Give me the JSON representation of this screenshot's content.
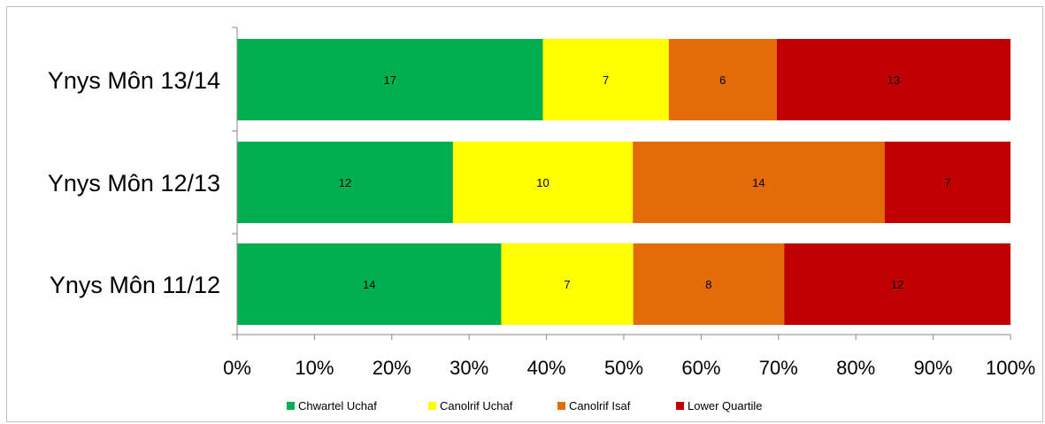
{
  "chart_data": {
    "type": "bar",
    "orientation": "horizontal",
    "stacked": "percent",
    "categories": [
      "Ynys Môn  13/14",
      "Ynys Môn 12/13",
      "Ynys Môn 11/12"
    ],
    "series": [
      {
        "name": "Chwartel Uchaf",
        "color": "#00b050",
        "values": [
          17,
          12,
          14
        ]
      },
      {
        "name": "Canolrif Uchaf",
        "color": "#ffff00",
        "values": [
          7,
          10,
          7
        ]
      },
      {
        "name": "Canolrif Isaf",
        "color": "#e36c09",
        "values": [
          6,
          14,
          8
        ]
      },
      {
        "name": "Lower Quartile",
        "color": "#c00000",
        "values": [
          13,
          7,
          12
        ]
      }
    ],
    "xlim": [
      0,
      100
    ],
    "x_ticks": [
      "0%",
      "10%",
      "20%",
      "30%",
      "40%",
      "50%",
      "60%",
      "70%",
      "80%",
      "90%",
      "100%"
    ],
    "grid": false,
    "legend_position": "bottom"
  }
}
